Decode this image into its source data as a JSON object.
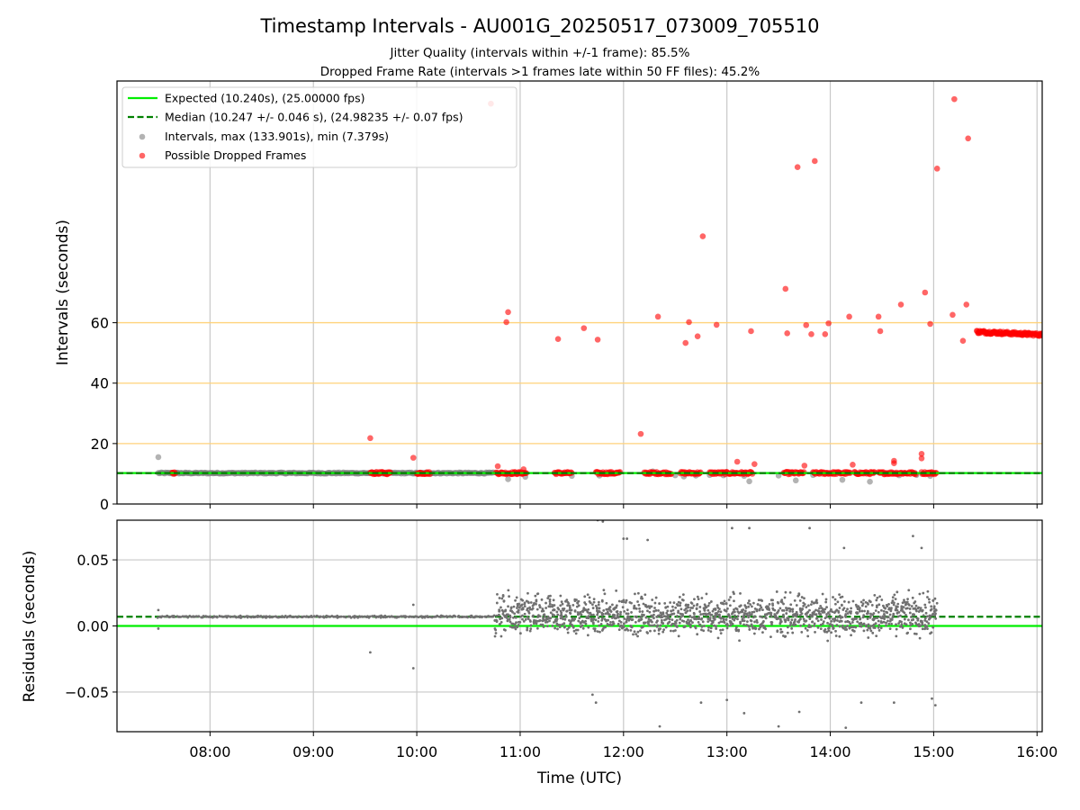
{
  "title": "Timestamp Intervals - AU001G_20250517_073009_705510",
  "subtitle_1": "Jitter Quality (intervals within +/-1 frame): 85.5%",
  "subtitle_2": "Dropped Frame Rate (intervals >1 frames late within 50 FF files): 45.2%",
  "colors": {
    "expected": "#00ee00",
    "median": "#008000",
    "intervals": "#808080",
    "dropped": "#ff0000",
    "hlines": "#ffd27a",
    "grid": "#c8c8c8",
    "residuals": "#707070"
  },
  "chart_data": [
    {
      "type": "scatter",
      "panel": "top",
      "xlabel": "",
      "ylabel": "Intervals (seconds)",
      "x_range": [
        "07:06",
        "16:03"
      ],
      "xticks": [
        "08:00",
        "09:00",
        "10:00",
        "11:00",
        "12:00",
        "13:00",
        "14:00",
        "15:00",
        "16:00"
      ],
      "ylim": [
        0,
        140
      ],
      "yticks": [
        0,
        20,
        40,
        60
      ],
      "grid": "vertical lines at x ticks",
      "reference_hlines": [
        20,
        40,
        60
      ],
      "legend_position": "top-left",
      "legend": [
        "Expected (10.240s), (25.00000 fps)",
        "Median (10.247 +/- 0.046 s), (24.98235 +/- 0.07 fps)",
        "Intervals, max (133.901s), min (7.379s)",
        "Possible Dropped Frames"
      ],
      "expected_y": 10.24,
      "median_y": 10.247,
      "intervals_series": {
        "name": "Intervals, max (133.901s), min (7.379s)",
        "continuous_segments": [
          [
            "07:30",
            "10:45"
          ]
        ],
        "points": [
          [
            "07:30",
            15.5
          ],
          [
            "10:53",
            8.2
          ],
          [
            "11:03",
            9.0
          ],
          [
            "11:30",
            9.3
          ],
          [
            "11:46",
            9.4
          ],
          [
            "12:17",
            10.8
          ],
          [
            "12:30",
            9.5
          ],
          [
            "12:35",
            9.1
          ],
          [
            "12:42",
            9.4
          ],
          [
            "12:50",
            9.6
          ],
          [
            "12:58",
            9.5
          ],
          [
            "13:10",
            9.3
          ],
          [
            "13:13",
            7.5
          ],
          [
            "13:30",
            9.4
          ],
          [
            "13:40",
            7.8
          ],
          [
            "13:50",
            9.6
          ],
          [
            "14:07",
            8.0
          ],
          [
            "14:23",
            7.4
          ],
          [
            "14:40",
            9.5
          ],
          [
            "14:50",
            9.6
          ],
          [
            "14:58",
            9.3
          ]
        ]
      },
      "dropped_series": {
        "name": "Possible Dropped Frames",
        "near_expected_segments": [
          [
            "07:38",
            "07:40"
          ],
          [
            "09:33",
            "09:45"
          ],
          [
            "10:00",
            "10:08"
          ],
          [
            "10:46",
            "11:04"
          ],
          [
            "11:20",
            "11:30"
          ],
          [
            "11:44",
            "11:58"
          ],
          [
            "12:12",
            "12:28"
          ],
          [
            "12:33",
            "12:45"
          ],
          [
            "12:50",
            "13:15"
          ],
          [
            "13:33",
            "13:45"
          ],
          [
            "13:50",
            "14:12"
          ],
          [
            "14:14",
            "14:26"
          ],
          [
            "14:28",
            "14:50"
          ],
          [
            "14:53",
            "15:02"
          ]
        ],
        "points": [
          [
            "09:33",
            21.8
          ],
          [
            "09:58",
            15.3
          ],
          [
            "10:43",
            132.5
          ],
          [
            "10:47",
            12.5
          ],
          [
            "10:52",
            60.2
          ],
          [
            "10:53",
            63.5
          ],
          [
            "11:02",
            11.5
          ],
          [
            "11:22",
            54.6
          ],
          [
            "11:37",
            58.2
          ],
          [
            "11:45",
            54.4
          ],
          [
            "12:10",
            23.2
          ],
          [
            "12:20",
            62.0
          ],
          [
            "12:36",
            53.3
          ],
          [
            "12:38",
            60.2
          ],
          [
            "12:43",
            55.5
          ],
          [
            "12:46",
            88.6
          ],
          [
            "12:54",
            59.3
          ],
          [
            "13:06",
            14.0
          ],
          [
            "13:14",
            57.2
          ],
          [
            "13:16",
            13.2
          ],
          [
            "13:34",
            71.2
          ],
          [
            "13:35",
            56.5
          ],
          [
            "13:41",
            111.5
          ],
          [
            "13:45",
            12.7
          ],
          [
            "13:46",
            59.2
          ],
          [
            "13:49",
            56.2
          ],
          [
            "13:51",
            113.5
          ],
          [
            "13:57",
            56.2
          ],
          [
            "13:59",
            59.8
          ],
          [
            "14:11",
            62.0
          ],
          [
            "14:13",
            13.0
          ],
          [
            "14:28",
            62.0
          ],
          [
            "14:29",
            57.2
          ],
          [
            "14:37",
            13.5
          ],
          [
            "14:37",
            14.3
          ],
          [
            "14:41",
            66.0
          ],
          [
            "14:53",
            16.6
          ],
          [
            "14:53",
            15.1
          ],
          [
            "14:55",
            70.0
          ],
          [
            "14:58",
            59.6
          ],
          [
            "15:02",
            111.0
          ],
          [
            "15:11",
            62.6
          ],
          [
            "15:12",
            134.0
          ],
          [
            "15:17",
            54.0
          ],
          [
            "15:19",
            66.0
          ],
          [
            "15:20",
            121.0
          ]
        ],
        "tail_segment": {
          "x_range": [
            "15:25",
            "16:04"
          ],
          "y_start": 57.0,
          "y_end": 56.0,
          "y_spread": 1.0
        }
      }
    },
    {
      "type": "scatter",
      "panel": "bottom",
      "xlabel": "Time (UTC)",
      "ylabel": "Residuals (seconds)",
      "x_range": [
        "07:06",
        "16:03"
      ],
      "xticks": [
        "08:00",
        "09:00",
        "10:00",
        "11:00",
        "12:00",
        "13:00",
        "14:00",
        "15:00",
        "16:00"
      ],
      "ylim": [
        -0.08,
        0.08
      ],
      "yticks": [
        -0.05,
        0.0,
        0.05
      ],
      "ytick_labels": [
        "−0.05",
        "0.00",
        "0.05"
      ],
      "grid": "both axes",
      "expected_y": 0.0,
      "median_y": 0.007,
      "residual_bands": [
        {
          "x_range": [
            "07:30",
            "10:45"
          ],
          "center": 0.007,
          "spread": 0.001
        },
        {
          "x_range": [
            "10:45",
            "15:02"
          ],
          "center": 0.008,
          "spread": 0.022
        }
      ],
      "residual_points": [
        [
          "07:30",
          0.012
        ],
        [
          "07:30",
          -0.002
        ],
        [
          "09:33",
          -0.02
        ],
        [
          "09:58",
          -0.032
        ],
        [
          "09:58",
          0.016
        ],
        [
          "11:42",
          -0.052
        ],
        [
          "11:44",
          -0.058
        ],
        [
          "11:45",
          0.08
        ],
        [
          "11:48",
          0.079
        ],
        [
          "12:00",
          0.066
        ],
        [
          "12:02",
          0.066
        ],
        [
          "12:14",
          0.065
        ],
        [
          "12:21",
          -0.076
        ],
        [
          "12:45",
          -0.058
        ],
        [
          "13:00",
          -0.056
        ],
        [
          "13:03",
          0.074
        ],
        [
          "13:10",
          -0.066
        ],
        [
          "13:13",
          0.074
        ],
        [
          "13:30",
          -0.076
        ],
        [
          "13:42",
          -0.065
        ],
        [
          "13:48",
          0.074
        ],
        [
          "14:08",
          0.059
        ],
        [
          "14:09",
          -0.077
        ],
        [
          "14:18",
          -0.058
        ],
        [
          "14:37",
          -0.058
        ],
        [
          "14:48",
          0.068
        ],
        [
          "14:53",
          0.059
        ],
        [
          "14:59",
          -0.055
        ],
        [
          "15:01",
          -0.06
        ]
      ]
    }
  ]
}
